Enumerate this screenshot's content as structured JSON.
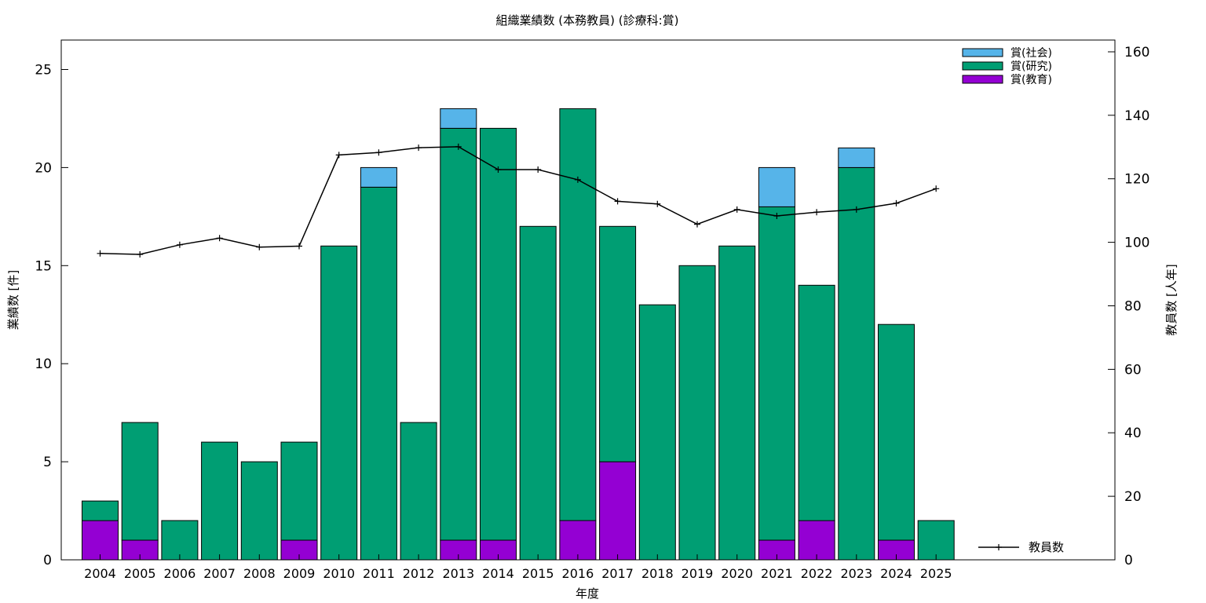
{
  "chart_data": {
    "type": "bar",
    "stacked": true,
    "title": "組織業績数 (本務教員) (診療科:賞)",
    "xlabel": "年度",
    "ylabel": "業績数 [件]",
    "y2label": "教員数 [人年]",
    "categories": [
      "2004",
      "2005",
      "2006",
      "2007",
      "2008",
      "2009",
      "2010",
      "2011",
      "2012",
      "2013",
      "2014",
      "2015",
      "2016",
      "2017",
      "2018",
      "2019",
      "2020",
      "2021",
      "2022",
      "2023",
      "2024",
      "2025"
    ],
    "ylim": [
      0,
      26.5
    ],
    "y2lim": [
      0,
      163.7
    ],
    "yticks": [
      0,
      5,
      10,
      15,
      20,
      25
    ],
    "y2ticks": [
      0,
      20,
      40,
      60,
      80,
      100,
      120,
      140,
      160
    ],
    "grid": false,
    "legend_position": "top-right",
    "series": [
      {
        "name": "賞(教育)",
        "color": "#9400d3",
        "values": [
          2,
          1,
          0,
          0,
          0,
          1,
          0,
          0,
          0,
          1,
          1,
          0,
          2,
          5,
          0,
          0,
          0,
          1,
          2,
          0,
          1,
          0
        ]
      },
      {
        "name": "賞(研究)",
        "color": "#009e73",
        "values": [
          1,
          6,
          2,
          6,
          5,
          5,
          16,
          19,
          7,
          21,
          21,
          17,
          21,
          12,
          13,
          15,
          16,
          17,
          12,
          20,
          11,
          2
        ]
      },
      {
        "name": "賞(社会)",
        "color": "#56b4e9",
        "values": [
          0,
          0,
          0,
          0,
          0,
          0,
          0,
          1,
          0,
          1,
          0,
          0,
          0,
          0,
          0,
          0,
          0,
          2,
          0,
          1,
          0,
          0
        ]
      }
    ],
    "legend_order": [
      "賞(社会)",
      "賞(研究)",
      "賞(教育)"
    ],
    "line_series": {
      "name": "教員数",
      "axis": "right",
      "color": "#000000",
      "values": [
        96.5,
        96.2,
        99.2,
        101.3,
        98.5,
        98.8,
        127.5,
        128.3,
        129.8,
        130.1,
        122.9,
        122.9,
        119.7,
        112.9,
        112.1,
        105.7,
        110.3,
        108.3,
        109.5,
        110.3,
        112.3,
        116.9
      ]
    }
  }
}
